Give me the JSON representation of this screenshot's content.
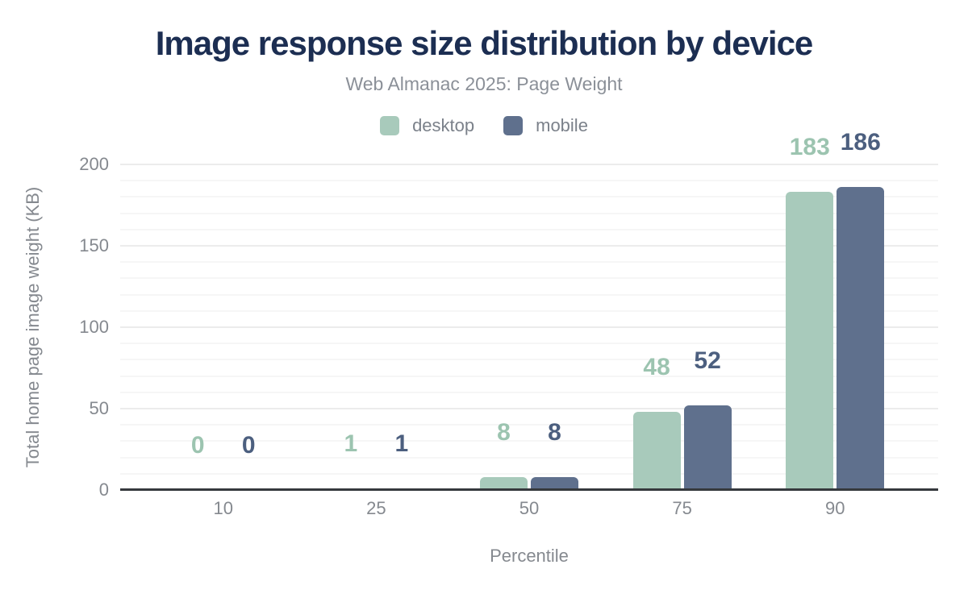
{
  "page": {
    "title": "Image response size distribution by device",
    "subtitle": "Web Almanac 2025: Page Weight"
  },
  "colors": {
    "title": "#1c2e52",
    "subtitle": "#8b9098",
    "legend_text": "#7b818a",
    "tick_text": "#85898f",
    "axis_title_text": "#85898f",
    "axis_line": "#36393d",
    "grid_minor": "#f6f6f6",
    "grid_major": "#ececec",
    "background": "#ffffff",
    "desktop": "#a8cabb",
    "mobile": "#5f708d"
  },
  "chart_data": {
    "type": "bar",
    "title": "Image response size distribution by device",
    "subtitle": "Web Almanac 2025: Page Weight",
    "categories": [
      "10",
      "25",
      "50",
      "75",
      "90"
    ],
    "series": [
      {
        "name": "desktop",
        "color": "#a8cabb",
        "label_color": "#9cc4b0",
        "values": [
          0,
          1,
          8,
          48,
          183
        ]
      },
      {
        "name": "mobile",
        "color": "#5f708d",
        "label_color": "#4c5f7f",
        "values": [
          0,
          1,
          8,
          52,
          186
        ]
      }
    ],
    "xlabel": "Percentile",
    "ylabel": "Total home page image weight (KB)",
    "ylim": [
      0,
      200
    ],
    "yticks": [
      0,
      50,
      100,
      150,
      200
    ],
    "minor_grid_step": 10,
    "grid": true,
    "legend_position": "top",
    "data_labels": true
  }
}
